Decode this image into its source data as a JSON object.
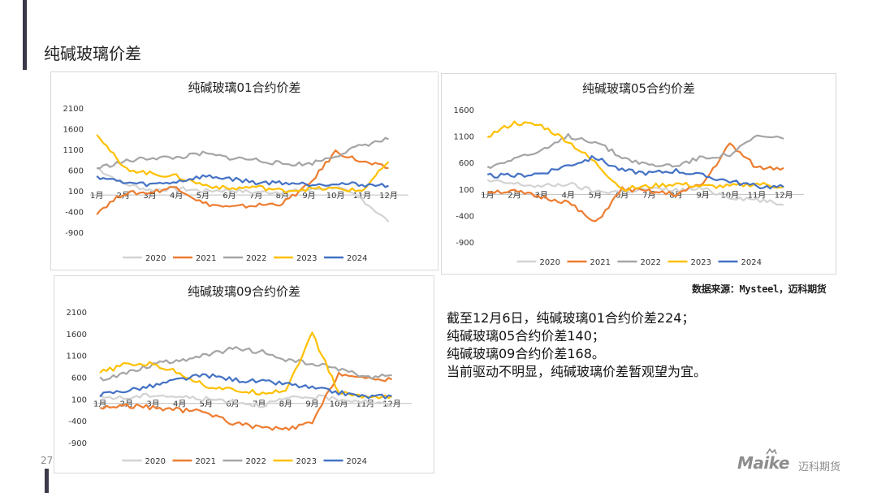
{
  "page": {
    "title": "纯碱玻璃价差",
    "page_number": "27",
    "source": "数据来源：Mysteel，迈科期货",
    "summary": [
      "截至12月6日，纯碱玻璃01合约价差224；",
      "纯碱玻璃05合约价差140；",
      "纯碱玻璃09合约价差168。",
      "当前驱动不明显，纯碱玻璃价差暂观望为宜。"
    ],
    "logo": {
      "brand": "Maike",
      "cn": "迈科期货"
    }
  },
  "colors": {
    "2020": "#d3d3d3",
    "2021": "#ed7d31",
    "2022": "#a5a5a5",
    "2023": "#ffc000",
    "2024": "#4472c4"
  },
  "chart_data": [
    {
      "type": "line",
      "title": "纯碱玻璃01合约价差",
      "x": [
        "1月",
        "2月",
        "3月",
        "4月",
        "5月",
        "6月",
        "7月",
        "8月",
        "9月",
        "10月",
        "11月",
        "12月"
      ],
      "ylim": [
        -900,
        2100
      ],
      "yticks": [
        "2100",
        "1600",
        "1100",
        "600",
        "100",
        "-400",
        "-900"
      ],
      "legend_position": "bottom",
      "series": [
        {
          "name": "2020",
          "values": [
            650,
            280,
            120,
            160,
            100,
            120,
            60,
            80,
            120,
            200,
            -100,
            -650
          ]
        },
        {
          "name": "2021",
          "values": [
            -420,
            40,
            60,
            200,
            -200,
            -300,
            -250,
            -200,
            250,
            1050,
            800,
            650
          ]
        },
        {
          "name": "2022",
          "values": [
            650,
            800,
            900,
            900,
            1000,
            900,
            850,
            750,
            750,
            950,
            1200,
            1350
          ]
        },
        {
          "name": "2023",
          "values": [
            1500,
            650,
            520,
            450,
            250,
            150,
            200,
            100,
            150,
            150,
            100,
            800
          ]
        },
        {
          "name": "2024",
          "values": [
            450,
            300,
            250,
            320,
            450,
            400,
            300,
            300,
            260,
            280,
            250,
            224
          ]
        }
      ]
    },
    {
      "type": "line",
      "title": "纯碱玻璃05合约价差",
      "x": [
        "1月",
        "2月",
        "3月",
        "4月",
        "5月",
        "6月",
        "7月",
        "8月",
        "9月",
        "10月",
        "11月",
        "12月"
      ],
      "ylim": [
        -900,
        1600
      ],
      "yticks": [
        "1600",
        "1100",
        "600",
        "100",
        "-400",
        "-900"
      ],
      "legend_position": "bottom",
      "series": [
        {
          "name": "2020",
          "values": [
            250,
            200,
            150,
            200,
            50,
            60,
            100,
            80,
            100,
            -50,
            -100,
            -200
          ]
        },
        {
          "name": "2021",
          "values": [
            60,
            50,
            -50,
            -150,
            -550,
            100,
            50,
            0,
            200,
            950,
            500,
            500
          ]
        },
        {
          "name": "2022",
          "values": [
            500,
            700,
            800,
            1100,
            1000,
            700,
            550,
            550,
            700,
            750,
            1100,
            1050
          ]
        },
        {
          "name": "2023",
          "values": [
            1100,
            1350,
            1300,
            1000,
            600,
            100,
            150,
            200,
            150,
            150,
            200,
            140
          ]
        },
        {
          "name": "2024",
          "values": [
            350,
            350,
            400,
            550,
            700,
            450,
            400,
            450,
            350,
            250,
            150,
            140
          ]
        }
      ]
    },
    {
      "type": "line",
      "title": "纯碱玻璃09合约价差",
      "x": [
        "1月",
        "2月",
        "3月",
        "4月",
        "5月",
        "6月",
        "7月",
        "8月",
        "9月",
        "10月",
        "11月",
        "12月"
      ],
      "ylim": [
        -900,
        2100
      ],
      "yticks": [
        "2100",
        "1600",
        "1100",
        "600",
        "100",
        "-400",
        "-900"
      ],
      "legend_position": "bottom",
      "series": [
        {
          "name": "2020",
          "values": [
            150,
            120,
            200,
            150,
            100,
            60,
            -50,
            100,
            150,
            100,
            50,
            -50
          ]
        },
        {
          "name": "2021",
          "values": [
            -100,
            -50,
            -100,
            -150,
            -200,
            -450,
            -550,
            -600,
            -450,
            700,
            550,
            550
          ]
        },
        {
          "name": "2022",
          "values": [
            550,
            700,
            900,
            1000,
            1100,
            1250,
            1200,
            1000,
            900,
            800,
            600,
            650
          ]
        },
        {
          "name": "2023",
          "values": [
            700,
            900,
            900,
            700,
            400,
            300,
            250,
            300,
            1600,
            250,
            150,
            168
          ]
        },
        {
          "name": "2024",
          "values": [
            200,
            300,
            400,
            550,
            650,
            550,
            500,
            450,
            350,
            250,
            150,
            168
          ]
        }
      ]
    }
  ]
}
